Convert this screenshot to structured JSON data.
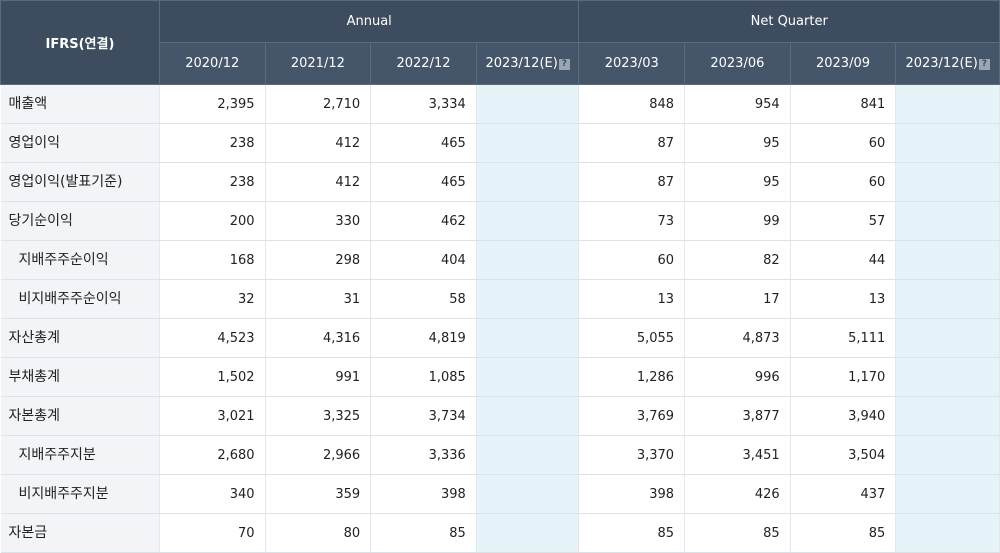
{
  "header": {
    "corner": "IFRS(연결)",
    "annual_label": "Annual",
    "quarter_label": "Net Quarter",
    "help_glyph": "?",
    "annual_periods": [
      "2020/12",
      "2021/12",
      "2022/12",
      "2023/12(E)"
    ],
    "quarter_periods": [
      "2023/03",
      "2023/06",
      "2023/09",
      "2023/12(E)"
    ]
  },
  "rows": [
    {
      "label": "매출액",
      "indent": false,
      "annual": [
        "2,395",
        "2,710",
        "3,334",
        ""
      ],
      "quarter": [
        "848",
        "954",
        "841",
        ""
      ]
    },
    {
      "label": "영업이익",
      "indent": false,
      "annual": [
        "238",
        "412",
        "465",
        ""
      ],
      "quarter": [
        "87",
        "95",
        "60",
        ""
      ]
    },
    {
      "label": "영업이익(발표기준)",
      "indent": false,
      "annual": [
        "238",
        "412",
        "465",
        ""
      ],
      "quarter": [
        "87",
        "95",
        "60",
        ""
      ]
    },
    {
      "label": "당기순이익",
      "indent": false,
      "annual": [
        "200",
        "330",
        "462",
        ""
      ],
      "quarter": [
        "73",
        "99",
        "57",
        ""
      ]
    },
    {
      "label": "지배주주순이익",
      "indent": true,
      "annual": [
        "168",
        "298",
        "404",
        ""
      ],
      "quarter": [
        "60",
        "82",
        "44",
        ""
      ]
    },
    {
      "label": "비지배주주순이익",
      "indent": true,
      "annual": [
        "32",
        "31",
        "58",
        ""
      ],
      "quarter": [
        "13",
        "17",
        "13",
        ""
      ]
    },
    {
      "label": "자산총계",
      "indent": false,
      "annual": [
        "4,523",
        "4,316",
        "4,819",
        ""
      ],
      "quarter": [
        "5,055",
        "4,873",
        "5,111",
        ""
      ]
    },
    {
      "label": "부채총계",
      "indent": false,
      "annual": [
        "1,502",
        "991",
        "1,085",
        ""
      ],
      "quarter": [
        "1,286",
        "996",
        "1,170",
        ""
      ]
    },
    {
      "label": "자본총계",
      "indent": false,
      "annual": [
        "3,021",
        "3,325",
        "3,734",
        ""
      ],
      "quarter": [
        "3,769",
        "3,877",
        "3,940",
        ""
      ]
    },
    {
      "label": "지배주주지분",
      "indent": true,
      "annual": [
        "2,680",
        "2,966",
        "3,336",
        ""
      ],
      "quarter": [
        "3,370",
        "3,451",
        "3,504",
        ""
      ]
    },
    {
      "label": "비지배주주지분",
      "indent": true,
      "annual": [
        "340",
        "359",
        "398",
        ""
      ],
      "quarter": [
        "398",
        "426",
        "437",
        ""
      ]
    },
    {
      "label": "자본금",
      "indent": false,
      "annual": [
        "70",
        "80",
        "85",
        ""
      ],
      "quarter": [
        "85",
        "85",
        "85",
        ""
      ]
    }
  ]
}
